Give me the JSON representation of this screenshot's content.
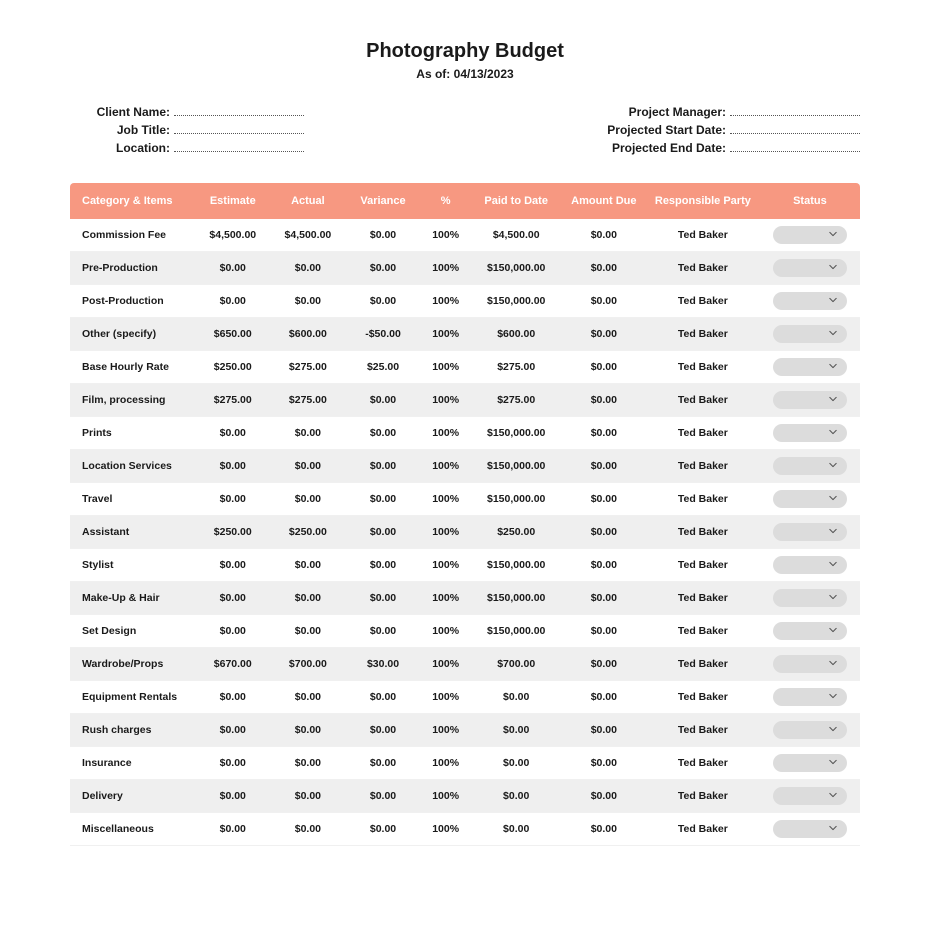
{
  "header": {
    "title": "Photography Budget",
    "as_of_label": "As of:",
    "as_of_date": "04/13/2023"
  },
  "meta": {
    "left": [
      {
        "label": "Client Name:"
      },
      {
        "label": "Job Title:"
      },
      {
        "label": "Location:"
      }
    ],
    "right": [
      {
        "label": "Project Manager:"
      },
      {
        "label": "Projected Start Date:"
      },
      {
        "label": "Projected End Date:"
      }
    ]
  },
  "table": {
    "header_bg": "#f79881",
    "header_fg": "#ffffff",
    "row_alt_bg": "#efefef",
    "status_pill_bg": "#dcdcdc",
    "columns": [
      "Category & Items",
      "Estimate",
      "Actual",
      "Variance",
      "%",
      "Paid to Date",
      "Amount Due",
      "Responsible Party",
      "Status"
    ],
    "rows": [
      {
        "category": "Commission Fee",
        "estimate": "$4,500.00",
        "actual": "$4,500.00",
        "variance": "$0.00",
        "pct": "100%",
        "paid": "$4,500.00",
        "due": "$0.00",
        "resp": "Ted Baker"
      },
      {
        "category": "Pre-Production",
        "estimate": "$0.00",
        "actual": "$0.00",
        "variance": "$0.00",
        "pct": "100%",
        "paid": "$150,000.00",
        "due": "$0.00",
        "resp": "Ted Baker"
      },
      {
        "category": "Post-Production",
        "estimate": "$0.00",
        "actual": "$0.00",
        "variance": "$0.00",
        "pct": "100%",
        "paid": "$150,000.00",
        "due": "$0.00",
        "resp": "Ted Baker"
      },
      {
        "category": "Other (specify)",
        "estimate": "$650.00",
        "actual": "$600.00",
        "variance": "-$50.00",
        "pct": "100%",
        "paid": "$600.00",
        "due": "$0.00",
        "resp": "Ted Baker"
      },
      {
        "category": "Base Hourly Rate",
        "estimate": "$250.00",
        "actual": "$275.00",
        "variance": "$25.00",
        "pct": "100%",
        "paid": "$275.00",
        "due": "$0.00",
        "resp": "Ted Baker"
      },
      {
        "category": "Film, processing",
        "estimate": "$275.00",
        "actual": "$275.00",
        "variance": "$0.00",
        "pct": "100%",
        "paid": "$275.00",
        "due": "$0.00",
        "resp": "Ted Baker"
      },
      {
        "category": "Prints",
        "estimate": "$0.00",
        "actual": "$0.00",
        "variance": "$0.00",
        "pct": "100%",
        "paid": "$150,000.00",
        "due": "$0.00",
        "resp": "Ted Baker"
      },
      {
        "category": "Location Services",
        "estimate": "$0.00",
        "actual": "$0.00",
        "variance": "$0.00",
        "pct": "100%",
        "paid": "$150,000.00",
        "due": "$0.00",
        "resp": "Ted Baker"
      },
      {
        "category": "Travel",
        "estimate": "$0.00",
        "actual": "$0.00",
        "variance": "$0.00",
        "pct": "100%",
        "paid": "$150,000.00",
        "due": "$0.00",
        "resp": "Ted Baker"
      },
      {
        "category": "Assistant",
        "estimate": "$250.00",
        "actual": "$250.00",
        "variance": "$0.00",
        "pct": "100%",
        "paid": "$250.00",
        "due": "$0.00",
        "resp": "Ted Baker"
      },
      {
        "category": "Stylist",
        "estimate": "$0.00",
        "actual": "$0.00",
        "variance": "$0.00",
        "pct": "100%",
        "paid": "$150,000.00",
        "due": "$0.00",
        "resp": "Ted Baker"
      },
      {
        "category": "Make-Up & Hair",
        "estimate": "$0.00",
        "actual": "$0.00",
        "variance": "$0.00",
        "pct": "100%",
        "paid": "$150,000.00",
        "due": "$0.00",
        "resp": "Ted Baker"
      },
      {
        "category": "Set Design",
        "estimate": "$0.00",
        "actual": "$0.00",
        "variance": "$0.00",
        "pct": "100%",
        "paid": "$150,000.00",
        "due": "$0.00",
        "resp": "Ted Baker"
      },
      {
        "category": "Wardrobe/Props",
        "estimate": "$670.00",
        "actual": "$700.00",
        "variance": "$30.00",
        "pct": "100%",
        "paid": "$700.00",
        "due": "$0.00",
        "resp": "Ted Baker"
      },
      {
        "category": "Equipment Rentals",
        "estimate": "$0.00",
        "actual": "$0.00",
        "variance": "$0.00",
        "pct": "100%",
        "paid": "$0.00",
        "due": "$0.00",
        "resp": "Ted Baker"
      },
      {
        "category": "Rush charges",
        "estimate": "$0.00",
        "actual": "$0.00",
        "variance": "$0.00",
        "pct": "100%",
        "paid": "$0.00",
        "due": "$0.00",
        "resp": "Ted Baker"
      },
      {
        "category": "Insurance",
        "estimate": "$0.00",
        "actual": "$0.00",
        "variance": "$0.00",
        "pct": "100%",
        "paid": "$0.00",
        "due": "$0.00",
        "resp": "Ted Baker"
      },
      {
        "category": "Delivery",
        "estimate": "$0.00",
        "actual": "$0.00",
        "variance": "$0.00",
        "pct": "100%",
        "paid": "$0.00",
        "due": "$0.00",
        "resp": "Ted Baker"
      },
      {
        "category": "Miscellaneous",
        "estimate": "$0.00",
        "actual": "$0.00",
        "variance": "$0.00",
        "pct": "100%",
        "paid": "$0.00",
        "due": "$0.00",
        "resp": "Ted Baker"
      }
    ]
  }
}
